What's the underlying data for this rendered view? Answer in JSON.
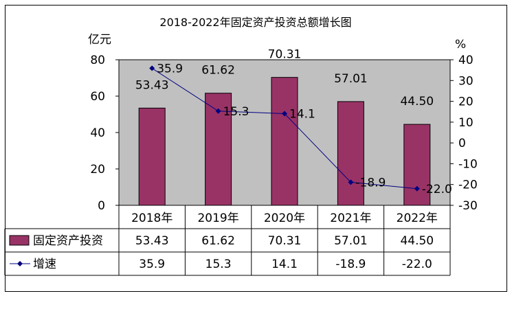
{
  "chart_data": {
    "type": "bar",
    "title": "2018-2022年固定资产投资总额增长图",
    "categories": [
      "2018年",
      "2019年",
      "2020年",
      "2021年",
      "2022年"
    ],
    "left_axis": {
      "unit": "亿元",
      "ylim": [
        0,
        80
      ],
      "ticks": [
        "0",
        "20",
        "40",
        "60",
        "80"
      ]
    },
    "right_axis": {
      "unit": "%",
      "ylim": [
        -30,
        40
      ],
      "ticks": [
        "40",
        "30",
        "20",
        "10",
        "0",
        "-10",
        "-20",
        "-30"
      ]
    },
    "series": [
      {
        "name": "固定资产投资",
        "type": "bar",
        "axis": "left",
        "values": [
          53.43,
          61.62,
          70.31,
          57.01,
          44.5
        ],
        "labels": [
          "53.43",
          "61.62",
          "70.31",
          "57.01",
          "44.50"
        ],
        "color": "#993366"
      },
      {
        "name": "增速",
        "type": "line",
        "axis": "right",
        "values": [
          35.9,
          15.3,
          14.1,
          -18.9,
          -22.0
        ],
        "labels": [
          "35.9",
          "15.3",
          "14.1",
          "-18.9",
          "-22.0"
        ],
        "color": "#000080"
      }
    ],
    "table_rows": [
      {
        "name": "固定资产投资",
        "cells": [
          "53.43",
          "61.62",
          "70.31",
          "57.01",
          "44.50"
        ]
      },
      {
        "name": "增速",
        "cells": [
          "35.9",
          "15.3",
          "14.1",
          "-18.9",
          "-22.0"
        ]
      }
    ],
    "plot_background": "#c0c0c0",
    "grid": false,
    "legend": "data-table-left"
  }
}
